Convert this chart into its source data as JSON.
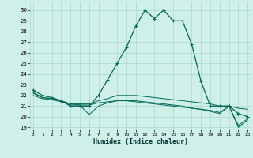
{
  "xlabel": "Humidex (Indice chaleur)",
  "bg_color": "#cef0e8",
  "grid_color": "#aad8cc",
  "line_color": "#006655",
  "x_ticks": [
    0,
    1,
    2,
    3,
    4,
    5,
    6,
    7,
    8,
    9,
    10,
    11,
    12,
    13,
    14,
    15,
    16,
    17,
    18,
    19,
    20,
    21,
    22,
    23
  ],
  "ylim": [
    18.8,
    30.8
  ],
  "xlim": [
    -0.3,
    23.3
  ],
  "y_ticks": [
    19,
    20,
    21,
    22,
    23,
    24,
    25,
    26,
    27,
    28,
    29,
    30
  ],
  "series": [
    [
      22.5,
      22.0,
      21.8,
      21.5,
      21.0,
      21.0,
      21.0,
      22.0,
      23.5,
      25.0,
      26.5,
      28.5,
      30.0,
      29.2,
      30.0,
      29.0,
      29.0,
      26.8,
      23.3,
      21.0,
      21.0,
      21.0,
      20.3,
      20.0
    ],
    [
      22.2,
      21.8,
      21.7,
      21.5,
      21.2,
      21.2,
      21.2,
      21.5,
      21.7,
      22.0,
      22.0,
      22.0,
      21.9,
      21.8,
      21.7,
      21.6,
      21.5,
      21.4,
      21.3,
      21.2,
      21.0,
      21.0,
      20.8,
      20.7
    ],
    [
      22.0,
      21.7,
      21.6,
      21.4,
      21.1,
      21.1,
      21.1,
      21.3,
      21.4,
      21.5,
      21.5,
      21.4,
      21.3,
      21.2,
      21.1,
      21.0,
      20.9,
      20.8,
      20.7,
      20.6,
      20.4,
      21.0,
      19.2,
      19.8
    ],
    [
      22.3,
      21.8,
      21.7,
      21.5,
      21.2,
      21.1,
      20.2,
      21.0,
      21.3,
      21.5,
      21.5,
      21.5,
      21.4,
      21.3,
      21.2,
      21.1,
      21.0,
      20.8,
      20.7,
      20.5,
      20.3,
      21.0,
      19.0,
      19.7
    ]
  ]
}
